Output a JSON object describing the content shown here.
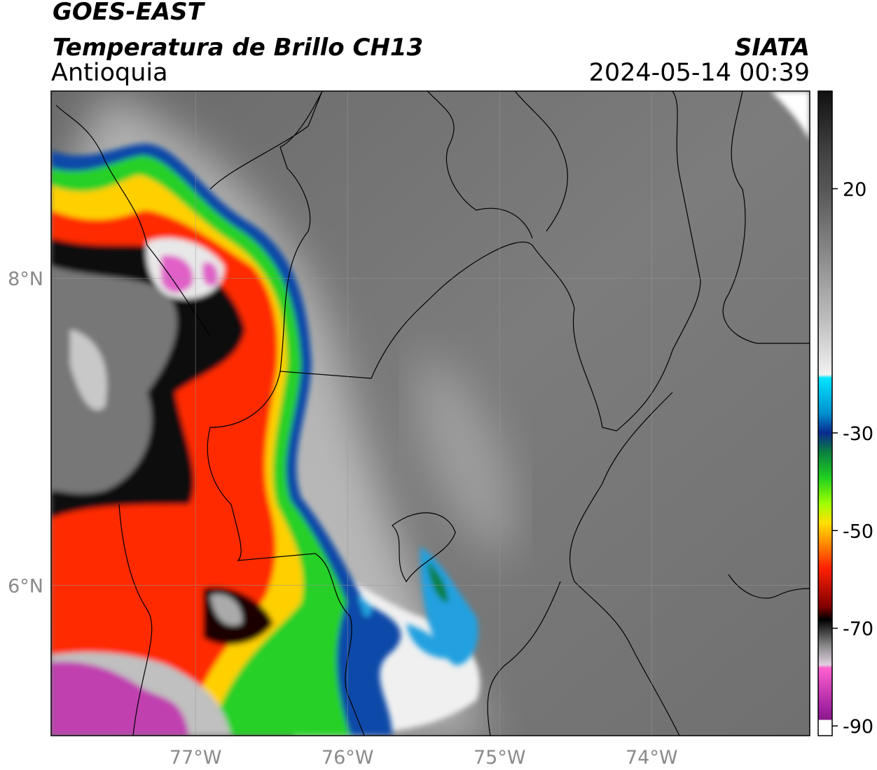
{
  "header": {
    "title": "GOES-EAST",
    "subtitle": "Temperatura de Brillo CH13",
    "region": "Antioquia",
    "source": "SIATA",
    "datetime": "2024-05-14 00:39"
  },
  "map": {
    "lon_range": [
      -77.95,
      -72.96
    ],
    "lat_range": [
      5.02,
      9.22
    ],
    "lon_ticks": [
      {
        "value": -77,
        "label": "77°W"
      },
      {
        "value": -76,
        "label": "76°W"
      },
      {
        "value": -75,
        "label": "75°W"
      },
      {
        "value": -74,
        "label": "74°W"
      }
    ],
    "lat_ticks": [
      {
        "value": 8,
        "label": "8°N"
      },
      {
        "value": 6,
        "label": "6°N"
      }
    ]
  },
  "colorbar": {
    "range": [
      40,
      -92
    ],
    "ticks": [
      20,
      -30,
      -50,
      -70,
      -90
    ]
  }
}
